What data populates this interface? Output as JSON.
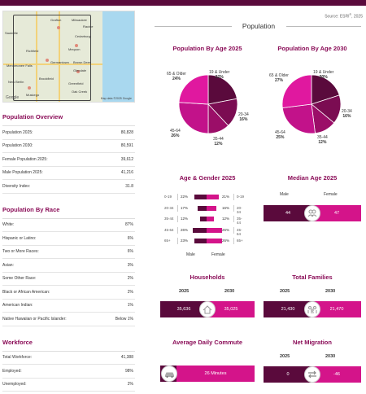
{
  "map": {
    "towns": [
      "Saukville",
      "Grafton",
      "Cedarburg",
      "Mequon",
      "Richfield",
      "Germantown",
      "Brown Deer",
      "Glendale",
      "Menomonee Falls",
      "Brookfield",
      "New Berlin",
      "Greenfield",
      "Muskego",
      "Oak Creek",
      "Milwaukee",
      "Racine"
    ],
    "logo": "Google",
    "credit": "Map data ©2025 Google"
  },
  "overview": {
    "title": "Population Overview",
    "rows": [
      {
        "label": "Population 2025:",
        "value": "80,828"
      },
      {
        "label": "Population 2030:",
        "value": "80,591"
      },
      {
        "label": "Female Population 2025:",
        "value": "39,612"
      },
      {
        "label": "Male Population 2025:",
        "value": "41,216"
      },
      {
        "label": "Diversity Index:",
        "value": "31.8"
      }
    ]
  },
  "race": {
    "title": "Population By Race",
    "rows": [
      {
        "label": "White:",
        "value": "87%"
      },
      {
        "label": "Hispanic or Latino:",
        "value": "6%"
      },
      {
        "label": "Two or More Races:",
        "value": "6%"
      },
      {
        "label": "Asian:",
        "value": "3%"
      },
      {
        "label": "Some Other Race:",
        "value": "2%"
      },
      {
        "label": "Black or African American:",
        "value": "2%"
      },
      {
        "label": "American Indian:",
        "value": "1%"
      },
      {
        "label": "Native Hawaiian or Pacific Islander:",
        "value": "Below 1%"
      }
    ]
  },
  "workforce": {
    "title": "Workforce",
    "rows": [
      {
        "label": "Total Workforce:",
        "value": "41,388"
      },
      {
        "label": "Employed:",
        "value": "98%"
      },
      {
        "label": "Unemployed:",
        "value": "2%"
      }
    ]
  },
  "header": {
    "source_prefix": "Source: ESRI",
    "source_sup": "®",
    "source_year": ", 2025",
    "title": "Population"
  },
  "chart_data": [
    {
      "type": "pie",
      "title": "Population By Age 2025",
      "categories": [
        "19 & Under",
        "20-34",
        "35-44",
        "45-64",
        "65 & Older"
      ],
      "values": [
        22,
        16,
        12,
        26,
        24
      ],
      "labels": [
        "22%",
        "16%",
        "12%",
        "26%",
        "24%"
      ]
    },
    {
      "type": "pie",
      "title": "Population By Age 2030",
      "categories": [
        "19 & Under",
        "20-34",
        "35-44",
        "45-64",
        "65 & Older"
      ],
      "values": [
        20,
        16,
        12,
        25,
        27
      ],
      "labels": [
        "20%",
        "16%",
        "12%",
        "25%",
        "27%"
      ]
    },
    {
      "type": "bar",
      "title": "Age & Gender 2025",
      "categories": [
        "0-19",
        "20-34",
        "35-44",
        "45-64",
        "65+"
      ],
      "series": [
        {
          "name": "Male",
          "values": [
            22,
            17,
            12,
            26,
            23
          ]
        },
        {
          "name": "Female",
          "values": [
            21,
            16,
            12,
            26,
            26
          ]
        }
      ],
      "labels_male": [
        "22%",
        "17%",
        "12%",
        "26%",
        "23%"
      ],
      "labels_female": [
        "21%",
        "16%",
        "12%",
        "26%",
        "26%"
      ]
    }
  ],
  "colors": {
    "pie": [
      "#5a0a3c",
      "#7b0c52",
      "#9b0e68",
      "#c2128a",
      "#e0189f"
    ],
    "dark": "#5a0a3c",
    "bright": "#d4148a",
    "title": "#8a0c57"
  },
  "median_age": {
    "title": "Median Age 2025",
    "male_label": "Male",
    "female_label": "Female",
    "male": "44",
    "female": "47",
    "icon": "people-icon"
  },
  "households": {
    "title": "Households",
    "year_a": "2025",
    "year_b": "2030",
    "value_a": "35,636",
    "value_b": "35,025",
    "icon": "house-icon"
  },
  "families": {
    "title": "Total Families",
    "year_a": "2025",
    "year_b": "2030",
    "value_a": "21,430",
    "value_b": "21,470",
    "icon": "family-icon"
  },
  "commute": {
    "title": "Average Daily Commute",
    "value": "26 Minutes",
    "icon": "car-icon"
  },
  "migration": {
    "title": "Net Migration",
    "year_a": "2025",
    "year_b": "2030",
    "value_a": "0",
    "value_b": "-46",
    "icon": "arrows-icon"
  }
}
